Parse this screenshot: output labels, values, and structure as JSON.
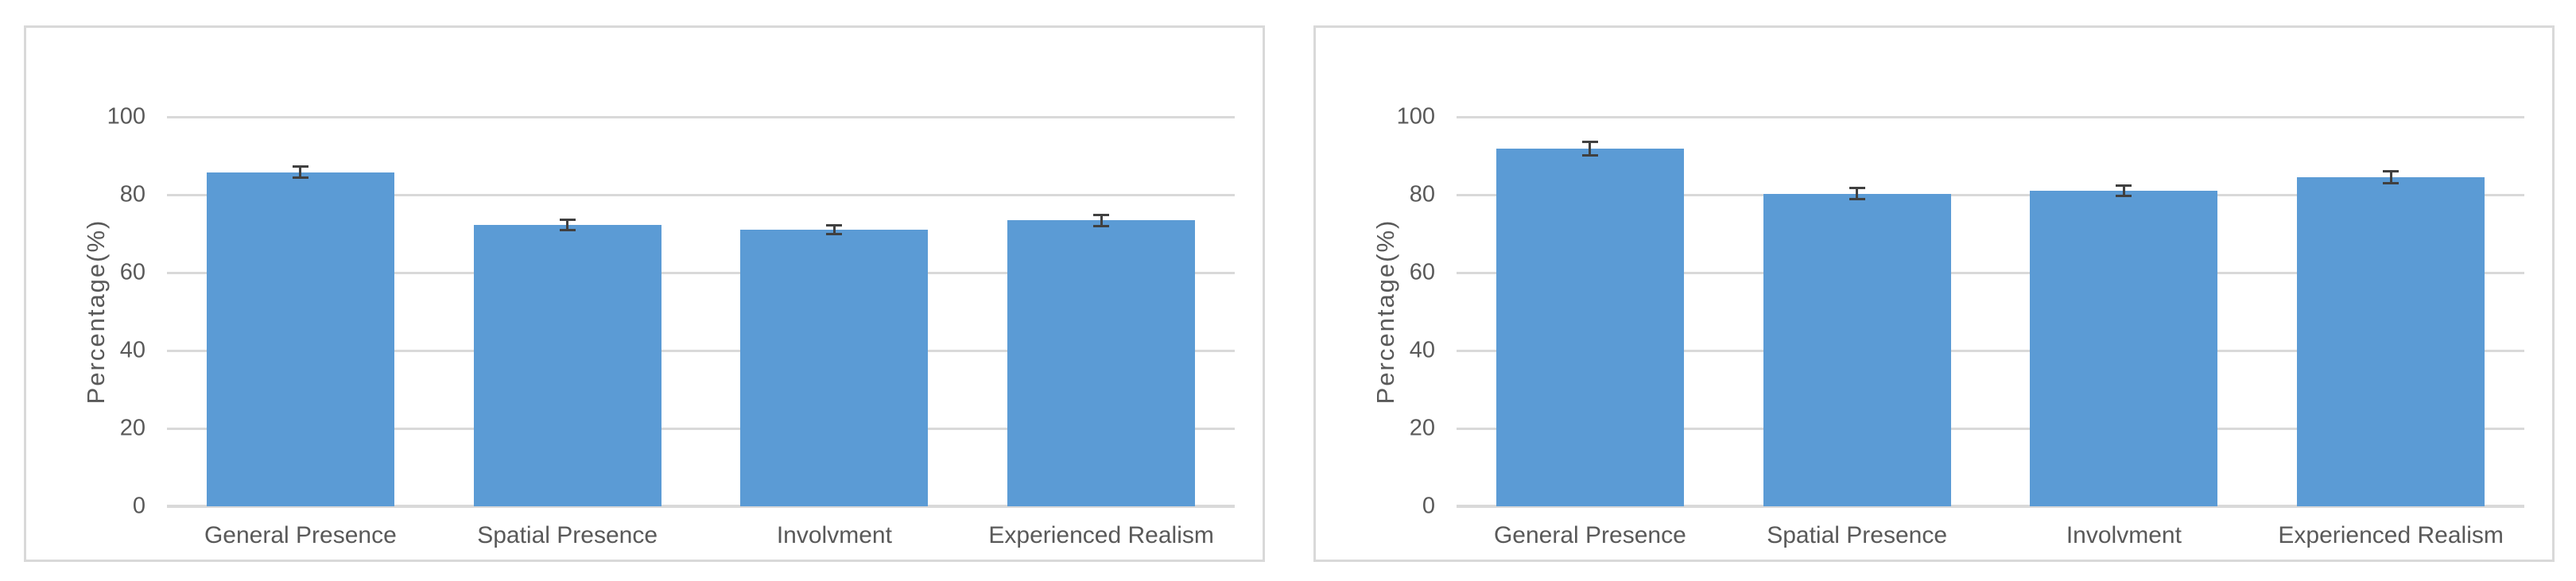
{
  "figure": {
    "background": "#FFFFFF",
    "panel_border_color": "#D9D9D9",
    "gridline_color": "#D9D9D9",
    "text_color": "#595959",
    "bar_color": "#5B9BD5",
    "error_bar_color": "#404040"
  },
  "chart_data": [
    {
      "type": "bar",
      "panel": "left",
      "title": "",
      "xlabel": "",
      "ylabel": "Percentage(%)",
      "categories": [
        "General Presence",
        "Spatial Presence",
        "Involvment",
        "Experienced Realism"
      ],
      "values": [
        85.8,
        72.2,
        71.0,
        73.4
      ],
      "errors": [
        1.8,
        1.6,
        1.5,
        1.7
      ],
      "ylim": [
        0,
        100
      ],
      "yticks": [
        0,
        20,
        40,
        60,
        80,
        100
      ],
      "grid": true,
      "legend": "none"
    },
    {
      "type": "bar",
      "panel": "right",
      "title": "",
      "xlabel": "",
      "ylabel": "Percentage(%)",
      "categories": [
        "General Presence",
        "Spatial Presence",
        "Involvment",
        "Experienced Realism"
      ],
      "values": [
        91.8,
        80.3,
        81.0,
        84.5
      ],
      "errors": [
        2.0,
        1.7,
        1.7,
        1.8
      ],
      "ylim": [
        0,
        100
      ],
      "yticks": [
        0,
        20,
        40,
        60,
        80,
        100
      ],
      "grid": true,
      "legend": "none"
    }
  ]
}
